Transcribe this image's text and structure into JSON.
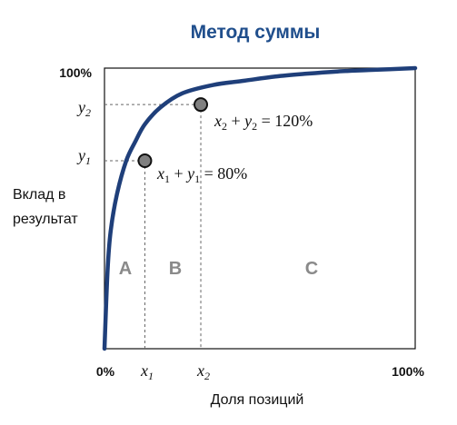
{
  "chart_data": {
    "type": "line",
    "title": "Метод суммы",
    "xlabel": "Доля позиций",
    "ylabel_lines": [
      "Вклад в",
      "результат"
    ],
    "x_ticks": [
      "0%",
      "x1",
      "x2",
      "100%"
    ],
    "y_ticks": [
      "100%",
      "y2",
      "y1"
    ],
    "xlim": [
      0,
      100
    ],
    "ylim": [
      0,
      100
    ],
    "series": [
      {
        "x": [
          0,
          1,
          2,
          4,
          7,
          10,
          13,
          18,
          25,
          35,
          45,
          55,
          65,
          75,
          85,
          100
        ],
        "y": [
          0,
          28,
          42,
          55,
          67,
          74,
          80,
          86,
          91,
          94,
          95.5,
          97,
          98,
          98.8,
          99.3,
          100
        ],
        "color": "#1f3f7a"
      }
    ],
    "points": [
      {
        "x": 13,
        "y": 67,
        "label": "x1",
        "label_sub": "1",
        "annotation": "x1 + y1 = 80%"
      },
      {
        "x": 31,
        "y": 87,
        "label": "x2",
        "label_sub": "2",
        "annotation": "x2 + y2 = 120%"
      }
    ],
    "regions": [
      "A",
      "B",
      "C"
    ],
    "grid": false,
    "colors": {
      "title": "#1f4e8c",
      "curve": "#1f3f7a",
      "point_fill": "#808080",
      "region_text": "#8a8a8a"
    }
  }
}
